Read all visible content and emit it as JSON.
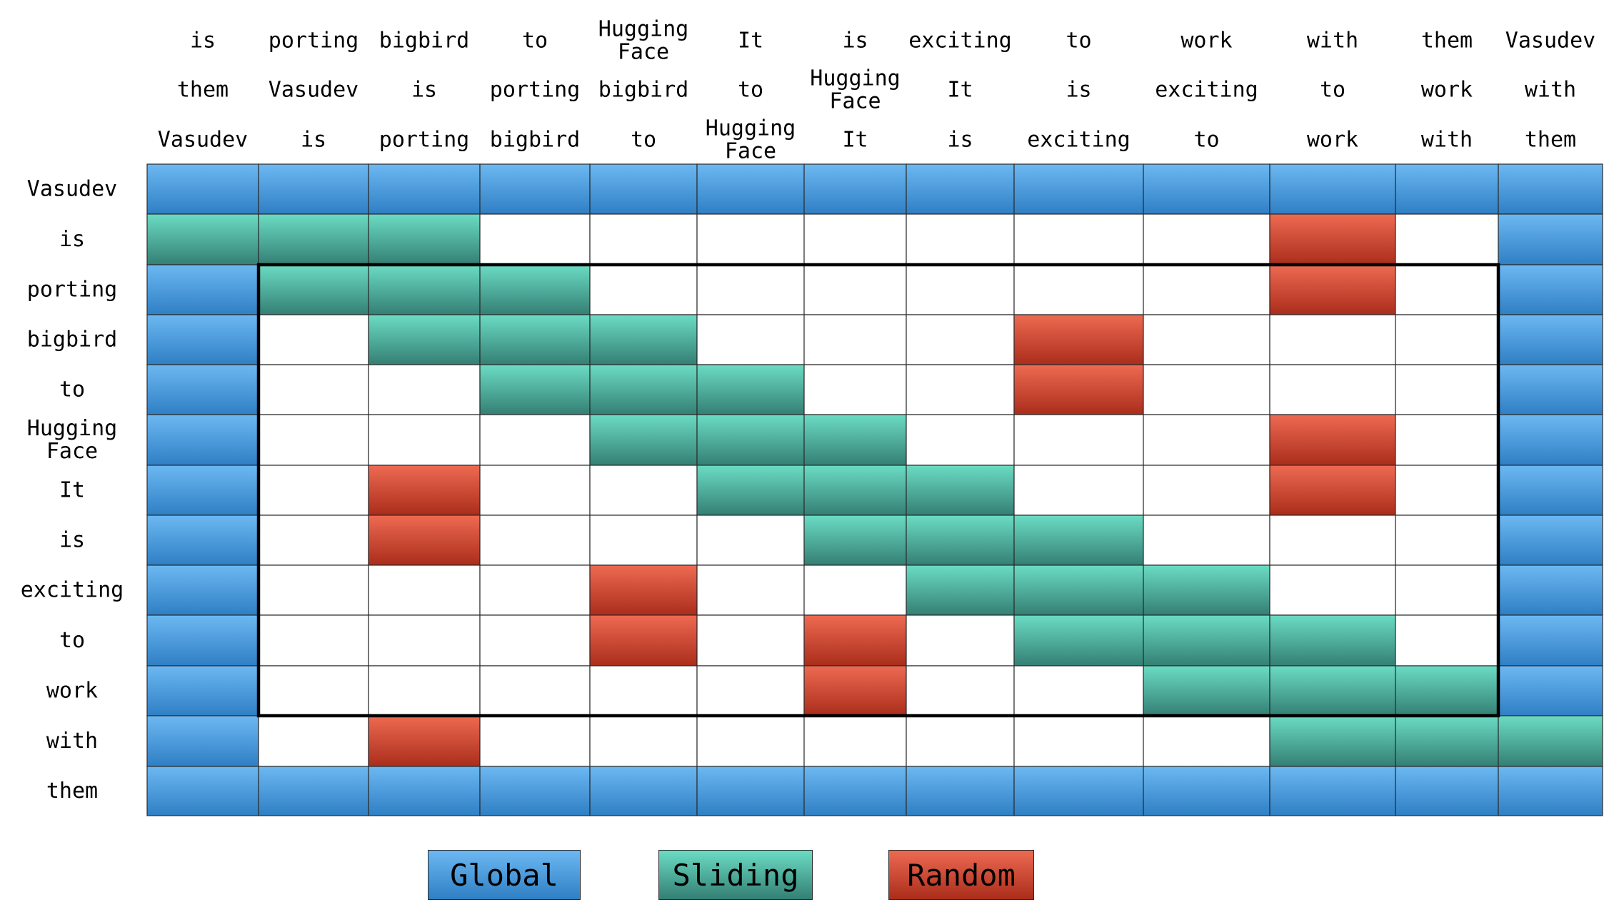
{
  "chart_data": {
    "type": "heatmap",
    "row_labels": [
      "Vasudev",
      "is",
      "porting",
      "bigbird",
      "to",
      "Hugging\nFace",
      "It",
      "is",
      "exciting",
      "to",
      "work",
      "with",
      "them"
    ],
    "column_labels": [
      [
        "is",
        "them",
        "Vasudev"
      ],
      [
        "porting",
        "Vasudev",
        "is"
      ],
      [
        "bigbird",
        "is",
        "porting"
      ],
      [
        "to",
        "porting",
        "bigbird"
      ],
      [
        "Hugging\nFace",
        "bigbird",
        "to"
      ],
      [
        "It",
        "to",
        "Hugging\nFace"
      ],
      [
        "is",
        "Hugging\nFace",
        "It"
      ],
      [
        "exciting",
        "It",
        "is"
      ],
      [
        "to",
        "is",
        "exciting"
      ],
      [
        "work",
        "exciting",
        "to"
      ],
      [
        "with",
        "to",
        "work"
      ],
      [
        "them",
        "work",
        "with"
      ],
      [
        "Vasudev",
        "with",
        "them"
      ]
    ],
    "cells": [
      "GGGGGGGGGGGGG",
      "SSS.......R.G",
      "GSSS......R.G",
      "G.SSS...R...G",
      "G..SSS..R...G",
      "G...SSS...R.G",
      "G.R..SSS..R.G",
      "G.R...SSS...G",
      "G...R..SSS..G",
      "G...R.R.SSS.G",
      "G.....R..SSSG",
      "G.R.......SSS",
      "GGGGGGGGGGGGG"
    ],
    "highlight_box": {
      "rows": [
        2,
        10
      ],
      "cols": [
        1,
        11
      ]
    },
    "legend": [
      {
        "code": "G",
        "label": "Global",
        "color": "#3f92d6"
      },
      {
        "code": "S",
        "label": "Sliding",
        "color": "#47ad9c"
      },
      {
        "code": "R",
        "label": "Random",
        "color": "#d2473a"
      }
    ]
  }
}
